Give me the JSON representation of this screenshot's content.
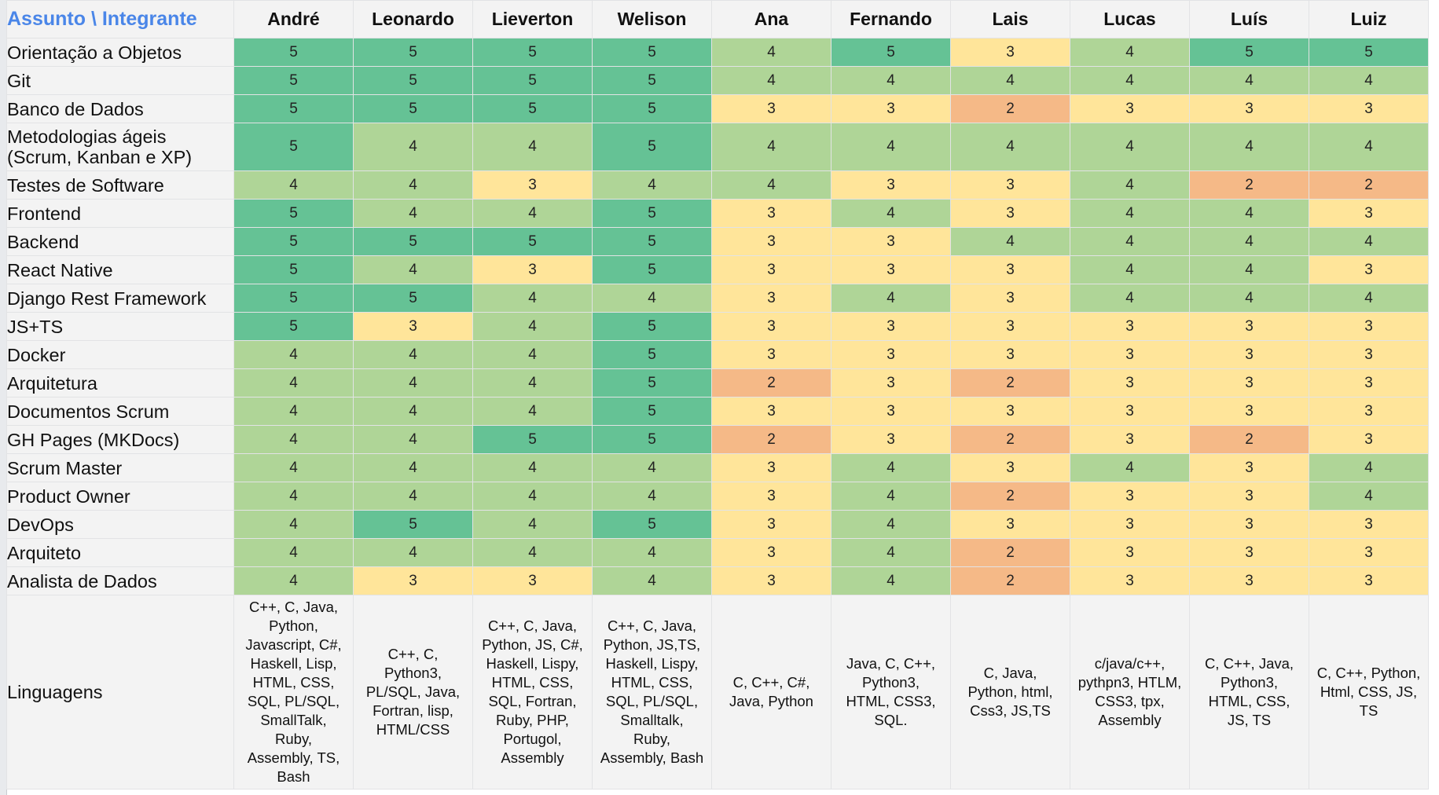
{
  "corner_label": "Assunto \\ Integrante",
  "members": [
    "André",
    "Leonardo",
    "Lieverton",
    "Welison",
    "Ana",
    "Fernando",
    "Lais",
    "Lucas",
    "Luís",
    "Luiz"
  ],
  "colors": {
    "5": "#65c295",
    "4": "#afd597",
    "3": "#ffe59a",
    "2": "#f5b987",
    "header_bg": "#f3f3f3",
    "corner_text": "#4a86e8"
  },
  "subjects": [
    {
      "label": "Orientação a Objetos",
      "scores": [
        5,
        5,
        5,
        5,
        4,
        5,
        3,
        4,
        5,
        5
      ]
    },
    {
      "label": "Git",
      "scores": [
        5,
        5,
        5,
        5,
        4,
        4,
        4,
        4,
        4,
        4
      ]
    },
    {
      "label": "Banco de Dados",
      "scores": [
        5,
        5,
        5,
        5,
        3,
        3,
        2,
        3,
        3,
        3
      ]
    },
    {
      "label": "Metodologias ágeis\n(Scrum, Kanban e XP)",
      "scores": [
        5,
        4,
        4,
        5,
        4,
        4,
        4,
        4,
        4,
        4
      ]
    },
    {
      "label": "Testes de Software",
      "scores": [
        4,
        4,
        3,
        4,
        4,
        3,
        3,
        4,
        2,
        2
      ]
    },
    {
      "label": "Frontend",
      "scores": [
        5,
        4,
        4,
        5,
        3,
        4,
        3,
        4,
        4,
        3
      ]
    },
    {
      "label": "Backend",
      "scores": [
        5,
        5,
        5,
        5,
        3,
        3,
        4,
        4,
        4,
        4
      ]
    },
    {
      "label": "React Native",
      "scores": [
        5,
        4,
        3,
        5,
        3,
        3,
        3,
        4,
        4,
        3
      ]
    },
    {
      "label": "Django Rest Framework",
      "scores": [
        5,
        5,
        4,
        4,
        3,
        4,
        3,
        4,
        4,
        4
      ]
    },
    {
      "label": "JS+TS",
      "scores": [
        5,
        3,
        4,
        5,
        3,
        3,
        3,
        3,
        3,
        3
      ]
    },
    {
      "label": "Docker",
      "scores": [
        4,
        4,
        4,
        5,
        3,
        3,
        3,
        3,
        3,
        3
      ]
    },
    {
      "label": "Arquitetura",
      "scores": [
        4,
        4,
        4,
        5,
        2,
        3,
        2,
        3,
        3,
        3
      ]
    },
    {
      "label": "Documentos Scrum",
      "scores": [
        4,
        4,
        4,
        5,
        3,
        3,
        3,
        3,
        3,
        3
      ]
    },
    {
      "label": "GH Pages (MKDocs)",
      "scores": [
        4,
        4,
        5,
        5,
        2,
        3,
        2,
        3,
        2,
        3
      ]
    },
    {
      "label": "Scrum Master",
      "scores": [
        4,
        4,
        4,
        4,
        3,
        4,
        3,
        4,
        3,
        4
      ]
    },
    {
      "label": "Product Owner",
      "scores": [
        4,
        4,
        4,
        4,
        3,
        4,
        2,
        3,
        3,
        4
      ]
    },
    {
      "label": "DevOps",
      "scores": [
        4,
        5,
        4,
        5,
        3,
        4,
        3,
        3,
        3,
        3
      ]
    },
    {
      "label": "Arquiteto",
      "scores": [
        4,
        4,
        4,
        4,
        3,
        4,
        2,
        3,
        3,
        3
      ]
    },
    {
      "label": "Analista de Dados",
      "scores": [
        4,
        3,
        3,
        4,
        3,
        4,
        2,
        3,
        3,
        3
      ]
    }
  ],
  "languages": {
    "label": "Linguagens",
    "values": [
      "C++, C, Java,\nPython,\nJavascript, C#,\nHaskell, Lisp,\nHTML, CSS,\nSQL, PL/SQL,\nSmallTalk,\nRuby,\nAssembly, TS,\nBash",
      "C++, C,\nPython3,\nPL/SQL, Java,\nFortran, lisp,\nHTML/CSS",
      "C++, C, Java,\nPython, JS, C#,\nHaskell, Lispy,\nHTML, CSS,\nSQL, Fortran,\nRuby, PHP,\nPortugol,\nAssembly",
      "C++, C, Java,\nPython, JS,TS,\nHaskell, Lispy,\nHTML, CSS,\nSQL, PL/SQL,\nSmalltalk,\nRuby,\nAssembly, Bash",
      "C, C++, C#,\nJava, Python",
      "Java, C, C++,\nPython3,\nHTML, CSS3,\nSQL.",
      "C, Java,\nPython, html,\nCss3, JS,TS",
      "c/java/c++,\npythpn3, HTLM,\nCSS3, tpx,\nAssembly",
      "C, C++, Java,\nPython3,\nHTML, CSS,\nJS, TS",
      "C, C++, Python,\nHtml, CSS, JS,\nTS"
    ]
  }
}
